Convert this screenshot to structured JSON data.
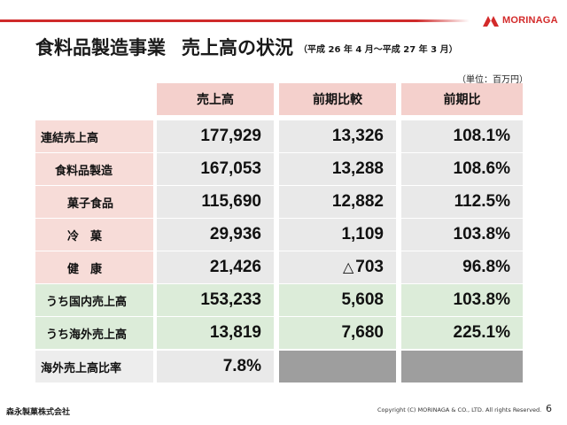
{
  "header": {
    "logo_text": "MORINAGA",
    "brand_color": "#cf2a2a"
  },
  "title": {
    "main": "食料品製造事業",
    "sub": "売上高の状況",
    "period": "（平成 26 年 4 月〜平成 27 年 3 月）"
  },
  "unit": "（単位：百万円）",
  "table": {
    "columns": [
      "売上高",
      "前期比較",
      "前期比"
    ],
    "rows": [
      {
        "label": "連結売上高",
        "sales": "177,929",
        "diff": "13,326",
        "ratio": "108.1%"
      },
      {
        "label": "食料品製造",
        "sales": "167,053",
        "diff": "13,288",
        "ratio": "108.6%"
      },
      {
        "label": "菓子食品",
        "sales": "115,690",
        "diff": "12,882",
        "ratio": "112.5%"
      },
      {
        "label": "冷　菓",
        "sales": "29,936",
        "diff": "1,109",
        "ratio": "103.8%"
      },
      {
        "label": "健　康",
        "sales": "21,426",
        "diff_symbol": "△",
        "diff": "703",
        "ratio": "96.8%"
      },
      {
        "label": "うち国内売上高",
        "sales": "153,233",
        "diff": "5,608",
        "ratio": "103.8%"
      },
      {
        "label": "うち海外売上高",
        "sales": "13,819",
        "diff": "7,680",
        "ratio": "225.1%"
      },
      {
        "label": "海外売上高比率",
        "sales": "7.8%"
      }
    ]
  },
  "footer": {
    "company": "森永製菓株式会社",
    "copyright": "Copyright (C) MORINAGA & CO., LTD. All rights Reserved.",
    "page": "6"
  }
}
